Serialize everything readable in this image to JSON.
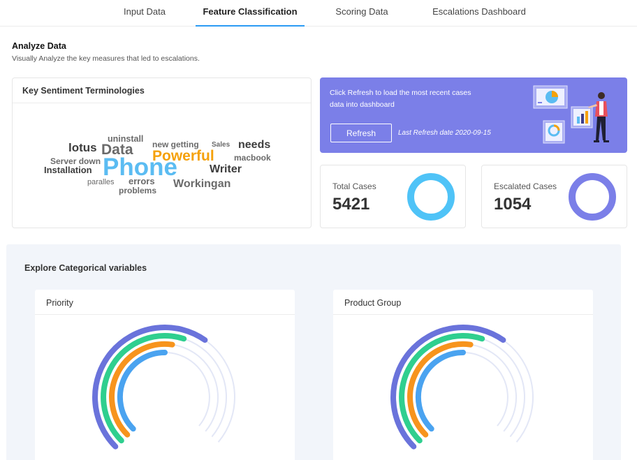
{
  "tabs": [
    {
      "label": "Input Data",
      "active": false
    },
    {
      "label": "Feature Classification",
      "active": true
    },
    {
      "label": "Scoring Data",
      "active": false
    },
    {
      "label": "Escalations Dashboard",
      "active": false
    }
  ],
  "header": {
    "title": "Analyze Data",
    "subtitle": "Visually Analyze the key measures that led to escalations."
  },
  "sentiment": {
    "title": "Key Sentiment Terminologies",
    "words": [
      "uninstall",
      "lotus",
      "Data",
      "new getting",
      "Sales",
      "needs",
      "Powerful",
      "macbook",
      "Server down",
      "Installation",
      "Phone",
      "Writer",
      "paralles",
      "errors",
      "Workingan",
      "problems"
    ]
  },
  "banner": {
    "text": "Click Refresh to load the most recent cases data into dashboard",
    "button": "Refresh",
    "last_refresh": "Last Refresh date 2020-09-15",
    "color": "#7b7fe8"
  },
  "stats": {
    "total": {
      "label": "Total Cases",
      "value": "5421",
      "color": "#4fc3f7"
    },
    "escalated": {
      "label": "Escalated Cases",
      "value": "1054",
      "color": "#7b7fe8"
    }
  },
  "explore": {
    "title": "Explore Categorical variables",
    "charts": [
      {
        "title": "Priority"
      },
      {
        "title": "Product Group"
      }
    ]
  },
  "chart_colors": [
    "#6a73db",
    "#2fcf8f",
    "#f7941d",
    "#4aa3f0"
  ]
}
